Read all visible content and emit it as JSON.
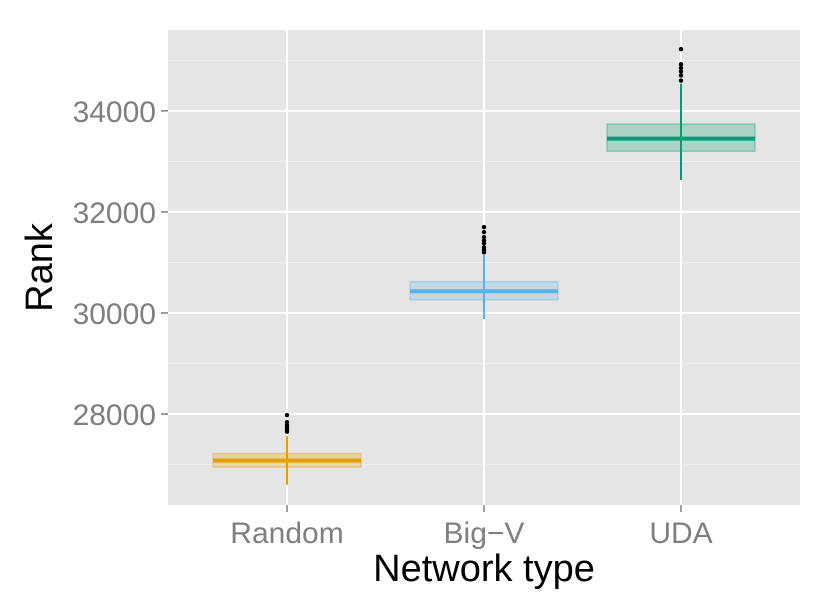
{
  "chart_data": {
    "type": "box",
    "xlabel": "Network type",
    "ylabel": "Rank",
    "categories": [
      "Random",
      "Big−V",
      "UDA"
    ],
    "y_ticks": [
      28000,
      30000,
      32000,
      34000
    ],
    "y_tick_labels": [
      "28000",
      "30000",
      "32000",
      "34000"
    ],
    "ylim": [
      26200,
      35600
    ],
    "grid": true,
    "boxes": [
      {
        "category": "Random",
        "color": "#E69F00",
        "whisker_low": 26600,
        "q1": 26950,
        "median": 27080,
        "q3": 27220,
        "whisker_high": 27560,
        "outliers": [
          27650,
          27700,
          27740,
          27780,
          27840,
          27980
        ]
      },
      {
        "category": "Big−V",
        "color": "#56B4E9",
        "whisker_low": 29880,
        "q1": 30260,
        "median": 30430,
        "q3": 30620,
        "whisker_high": 31150,
        "outliers": [
          31200,
          31250,
          31300,
          31380,
          31430,
          31500,
          31600,
          31700
        ]
      },
      {
        "category": "UDA",
        "color": "#009E73",
        "whisker_low": 32630,
        "q1": 33200,
        "median": 33450,
        "q3": 33740,
        "whisker_high": 34540,
        "outliers": [
          34600,
          34700,
          34780,
          34850,
          34920,
          35220
        ]
      }
    ]
  }
}
